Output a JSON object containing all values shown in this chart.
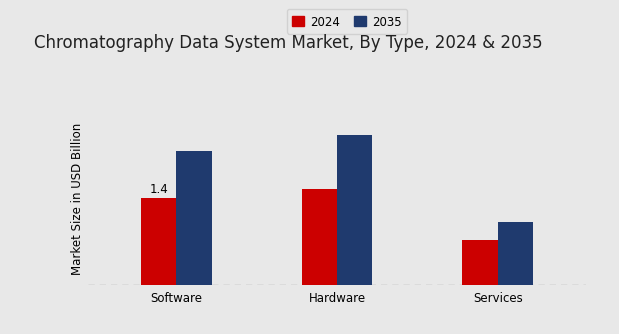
{
  "title": "Chromatography Data System Market, By Type, 2024 & 2035",
  "ylabel": "Market Size in USD Billion",
  "categories": [
    "Software",
    "Hardware",
    "Services"
  ],
  "values_2024": [
    1.4,
    1.55,
    0.72
  ],
  "values_2035": [
    2.15,
    2.42,
    1.02
  ],
  "bar_color_2024": "#cc0000",
  "bar_color_2035": "#1f3a6e",
  "background_color": "#e8e8e8",
  "bar_width": 0.22,
  "annotation_2024_software": "1.4",
  "legend_labels": [
    "2024",
    "2035"
  ],
  "title_fontsize": 12,
  "label_fontsize": 8.5,
  "tick_fontsize": 8.5,
  "ylim": [
    0,
    2.8
  ],
  "red_bar_color": "#cc0000"
}
